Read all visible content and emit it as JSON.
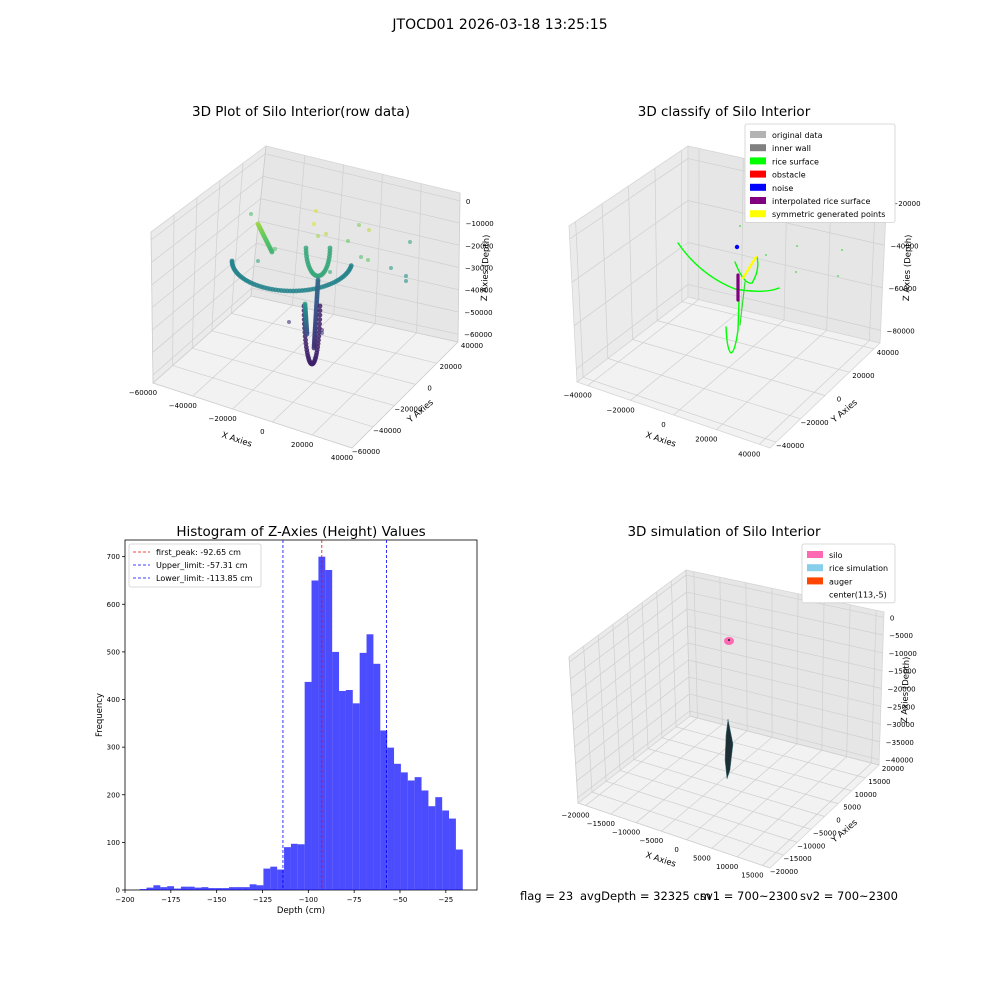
{
  "suptitle": "JTOCD01 2026-03-18 13:25:15",
  "footer": {
    "flag": "flag = 23",
    "avg_depth": "avgDepth = 32325 cm",
    "sv1": "sv1 = 700~2300",
    "sv2": "sv2 = 700~2300"
  },
  "chart_data": [
    {
      "type": "scatter",
      "title": "3D Plot of Silo Interior(row data)",
      "xlabel": "X Axies",
      "ylabel": "Y Axies",
      "zlabel": "Z Axies (Depth)",
      "x_ticks": [
        "−60000",
        "−40000",
        "−20000",
        "0",
        "20000",
        "40000"
      ],
      "y_ticks": [
        "−60000",
        "−40000",
        "−20000",
        "0",
        "20000",
        "40000"
      ],
      "z_ticks": [
        "0",
        "−10000",
        "−20000",
        "−30000",
        "−40000",
        "−50000",
        "−60000"
      ],
      "colormap": "viridis"
    },
    {
      "type": "scatter",
      "title": "3D classify of Silo Interior",
      "xlabel": "X Axies",
      "ylabel": "Y Axies",
      "zlabel": "Z Axies (Depth)",
      "x_ticks": [
        "−40000",
        "−20000",
        "0",
        "20000",
        "40000"
      ],
      "y_ticks": [
        "−40000",
        "−20000",
        "0",
        "20000",
        "40000"
      ],
      "z_ticks": [
        "−20000",
        "−40000",
        "−60000",
        "−80000"
      ],
      "legend_position": "top-right",
      "legend": [
        {
          "label": "original data",
          "color": "#b3b3b3"
        },
        {
          "label": "inner wall",
          "color": "#808080"
        },
        {
          "label": "rice surface",
          "color": "#00ff00"
        },
        {
          "label": "obstacle",
          "color": "#ff0000"
        },
        {
          "label": "noise",
          "color": "#0000ff"
        },
        {
          "label": "interpolated rice surface",
          "color": "#800080"
        },
        {
          "label": "symmetric generated points",
          "color": "#ffff00"
        }
      ]
    },
    {
      "type": "bar",
      "title": "Histogram of Z-Axies (Height) Values",
      "xlabel": "Depth (cm)",
      "ylabel": "Frequency",
      "xlim": [
        -200,
        -8
      ],
      "ylim": [
        0,
        735
      ],
      "x_ticks": [
        -200,
        -175,
        -150,
        -125,
        -100,
        -75,
        -50,
        -25
      ],
      "y_ticks": [
        0,
        100,
        200,
        300,
        400,
        500,
        600,
        700
      ],
      "bar_color": "#0000ff",
      "bin_edges": [
        -192,
        -188.25,
        -184.5,
        -180.75,
        -177,
        -173.25,
        -169.5,
        -165.75,
        -162,
        -158.25,
        -154.5,
        -150.75,
        -147,
        -143.25,
        -139.5,
        -135.75,
        -132,
        -128.25,
        -124.5,
        -120.75,
        -117,
        -113.25,
        -109.5,
        -105.75,
        -102,
        -98.25,
        -94.5,
        -90.75,
        -87,
        -83.25,
        -79.5,
        -75.75,
        -72,
        -68.25,
        -64.5,
        -60.75,
        -57,
        -53.25,
        -49.5,
        -45.75,
        -42,
        -38.25,
        -34.5,
        -30.75,
        -27,
        -23.25,
        -19.5,
        -15.75,
        -12
      ],
      "values": [
        2,
        5,
        10,
        6,
        8,
        3,
        7,
        7,
        5,
        6,
        4,
        4,
        4,
        6,
        6,
        6,
        12,
        10,
        45,
        49,
        43,
        90,
        97,
        96,
        437,
        650,
        700,
        672,
        500,
        418,
        420,
        392,
        498,
        537,
        475,
        335,
        299,
        265,
        247,
        230,
        237,
        209,
        176,
        195,
        167,
        150,
        85,
        0
      ],
      "lines": [
        {
          "label": "first_peak: -92.65 cm",
          "x": -92.65,
          "color": "#ff0000"
        },
        {
          "label": "Upper_limit: -57.31 cm",
          "x": -57.31,
          "color": "#0000ff"
        },
        {
          "label": "Lower_limit: -113.85 cm",
          "x": -113.85,
          "color": "#0000ff"
        }
      ],
      "legend_position": "top-left"
    },
    {
      "type": "scatter",
      "title": "3D simulation of Silo Interior",
      "xlabel": "X Axies",
      "ylabel": "Y Axies",
      "zlabel": "Z Axies (Depth)",
      "x_ticks": [
        "−20000",
        "−15000",
        "−10000",
        "−5000",
        "0",
        "5000",
        "10000",
        "15000"
      ],
      "y_ticks": [
        "−20000",
        "−15000",
        "−10000",
        "−5000",
        "0",
        "5000",
        "10000",
        "15000",
        "20000"
      ],
      "z_ticks": [
        "0",
        "−5000",
        "−10000",
        "−15000",
        "−20000",
        "−25000",
        "−30000",
        "−35000",
        "−40000"
      ],
      "legend_position": "top-right",
      "legend": [
        {
          "label": "silo",
          "color": "#ff69b4"
        },
        {
          "label": "rice simulation",
          "color": "#87ceeb"
        },
        {
          "label": "auger",
          "color": "#ff4500"
        },
        {
          "label": "center(113,-5)",
          "color": ""
        }
      ]
    }
  ]
}
